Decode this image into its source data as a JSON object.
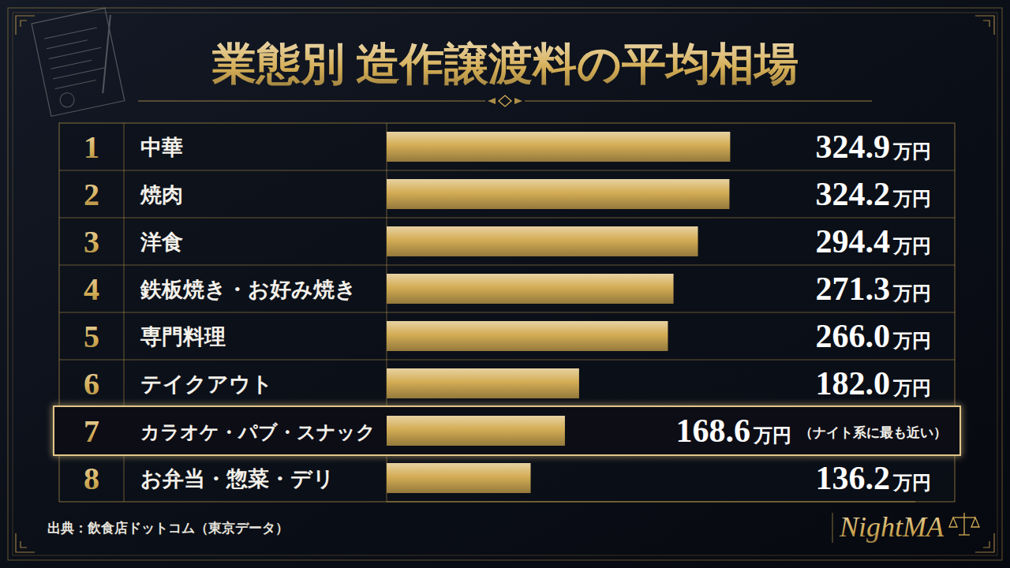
{
  "chart_data": {
    "type": "bar",
    "orientation": "horizontal",
    "title": "業態別 造作譲渡料の平均相場",
    "ranks": [
      1,
      2,
      3,
      4,
      5,
      6,
      7,
      8
    ],
    "categories": [
      "中華",
      "焼肉",
      "洋食",
      "鉄板焼き・お好み焼き",
      "専門料理",
      "テイクアウト",
      "カラオケ・パブ・スナック",
      "お弁当・惣菜・デリ"
    ],
    "values": [
      324.9,
      324.2,
      294.4,
      271.3,
      266.0,
      182.0,
      168.6,
      136.2
    ],
    "value_labels": [
      "324.9万円",
      "324.2万円",
      "294.4万円",
      "271.3万円",
      "266.0万円",
      "182.0万円",
      "168.6万円",
      "136.2万円"
    ],
    "data_labels": true,
    "xlim": [
      0,
      500
    ],
    "tick_labels": false,
    "grid": false,
    "color": "#d4ad55",
    "annotations": [
      {
        "category": "カラオケ・パブ・スナック",
        "text": "（ナイト系に最も近い）"
      }
    ],
    "source": "出典：飲食店ドットコム（東京データ）",
    "brand": "NightMA"
  }
}
